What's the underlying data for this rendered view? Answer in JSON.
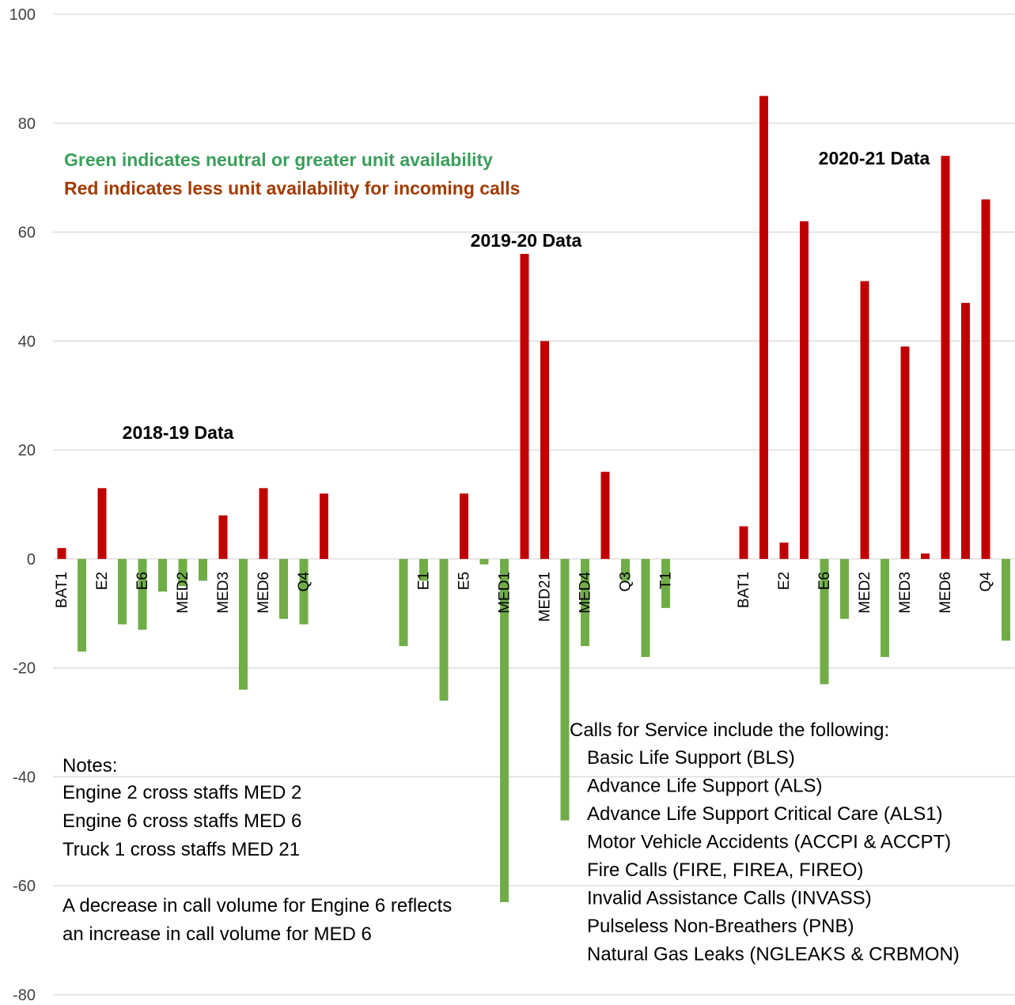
{
  "chart_data": {
    "type": "bar",
    "ylim": [
      -80,
      100
    ],
    "ytick_step": 20,
    "grid": true,
    "colors": {
      "positive": "#C00000",
      "negative": "#70AD47",
      "legend_green": "#3A9E5A",
      "legend_red": "#A33A00",
      "grid": "#D9D9D9"
    },
    "legend_text": {
      "green": "Green indicates neutral or greater unit availability",
      "red": "Red indicates less unit availability for incoming calls"
    },
    "groups": [
      {
        "title": "2018-19 Data",
        "bars": [
          {
            "label": "BAT1",
            "value": 2
          },
          {
            "label": "",
            "value": -17
          },
          {
            "label": "E2",
            "value": 13
          },
          {
            "label": "",
            "value": -12
          },
          {
            "label": "E6",
            "value": -13
          },
          {
            "label": "",
            "value": -6
          },
          {
            "label": "MED2",
            "value": -5
          },
          {
            "label": "",
            "value": -4
          },
          {
            "label": "MED3",
            "value": 8
          },
          {
            "label": "",
            "value": -24
          },
          {
            "label": "MED6",
            "value": 13
          },
          {
            "label": "",
            "value": -11
          },
          {
            "label": "Q4",
            "value": -12
          },
          {
            "label": "",
            "value": 12
          }
        ]
      },
      {
        "title": "2019-20 Data",
        "bars": [
          {
            "label": "",
            "value": -16
          },
          {
            "label": "E1",
            "value": -4
          },
          {
            "label": "",
            "value": -26
          },
          {
            "label": "E5",
            "value": 12
          },
          {
            "label": "",
            "value": -1
          },
          {
            "label": "MED1",
            "value": -63
          },
          {
            "label": "",
            "value": 56
          },
          {
            "label": "MED21",
            "value": 40
          },
          {
            "label": "",
            "value": -48
          },
          {
            "label": "MED4",
            "value": -16
          },
          {
            "label": "",
            "value": 16
          },
          {
            "label": "Q3",
            "value": -4
          },
          {
            "label": "",
            "value": -18
          },
          {
            "label": "T1",
            "value": -9
          }
        ]
      },
      {
        "title": "2020-21 Data",
        "bars": [
          {
            "label": "BAT1",
            "value": 6
          },
          {
            "label": "",
            "value": 85
          },
          {
            "label": "E2",
            "value": 3
          },
          {
            "label": "",
            "value": 62
          },
          {
            "label": "E6",
            "value": -23
          },
          {
            "label": "",
            "value": -11
          },
          {
            "label": "MED2",
            "value": 51
          },
          {
            "label": "",
            "value": -18
          },
          {
            "label": "MED3",
            "value": 39
          },
          {
            "label": "",
            "value": 1
          },
          {
            "label": "MED6",
            "value": 74
          },
          {
            "label": "",
            "value": 47
          },
          {
            "label": "Q4",
            "value": 66
          },
          {
            "label": "",
            "value": -15
          }
        ]
      }
    ],
    "notes": {
      "heading": "Notes:",
      "lines": [
        "Engine 2 cross staffs MED 2",
        "Engine 6 cross staffs MED 6",
        "Truck 1 cross staffs MED 21"
      ],
      "extra": [
        "A decrease in call volume for Engine 6 reflects",
        "an increase in call volume for MED 6"
      ]
    },
    "calls": {
      "heading": "Calls for Service include the following:",
      "items": [
        "Basic Life Support (BLS)",
        "Advance Life Support (ALS)",
        "Advance Life Support Critical Care (ALS1)",
        "Motor Vehicle Accidents (ACCPI & ACCPT)",
        "Fire Calls (FIRE, FIREA, FIREO)",
        "Invalid Assistance Calls (INVASS)",
        "Pulseless Non-Breathers (PNB)",
        "Natural Gas Leaks (NGLEAKS & CRBMON)"
      ]
    }
  }
}
